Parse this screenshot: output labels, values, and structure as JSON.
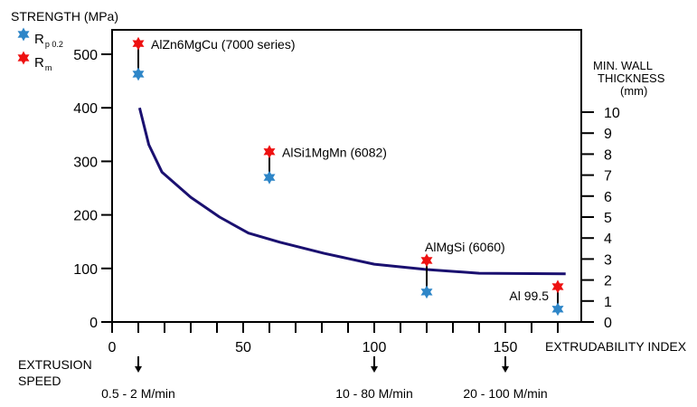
{
  "chart_data": {
    "type": "scatter",
    "title": "",
    "ylabel": "STRENGTH (MPa)",
    "y2label": [
      "MIN. WALL",
      "THICKNESS",
      "(mm)"
    ],
    "xlabel": "EXTRUDABILITY INDEX",
    "xlim": [
      0,
      179
    ],
    "ylim": [
      0,
      545
    ],
    "y2lim": [
      0,
      10
    ],
    "x_ticks": [
      0,
      50,
      100,
      150
    ],
    "y_ticks": [
      0,
      100,
      200,
      300,
      400,
      500
    ],
    "y2_ticks": [
      0,
      1,
      2,
      3,
      4,
      5,
      6,
      7,
      8,
      9,
      10
    ],
    "legend": [
      {
        "label": "R",
        "sub": "p 0.2",
        "color": "#2e86c8"
      },
      {
        "label": "R",
        "sub": "m",
        "color": "#ee1111"
      }
    ],
    "alloys": [
      {
        "name": "AlZn6MgCu (7000 series)",
        "x": 10,
        "rm": 520,
        "rp": 463
      },
      {
        "name": "AlSi1MgMn (6082)",
        "x": 60,
        "rm": 318,
        "rp": 270
      },
      {
        "name": "AlMgSi (6060)",
        "x": 120,
        "rm": 115,
        "rp": 56
      },
      {
        "name": "Al 99.5",
        "x": 170,
        "rm": 66,
        "rp": 24
      }
    ],
    "wall_thickness_curve": {
      "color": "#1a1070",
      "x": [
        10.5,
        14,
        19,
        30,
        41,
        52,
        64,
        81,
        100,
        120,
        140,
        173
      ],
      "y": [
        400,
        331,
        280,
        233,
        196,
        166,
        149,
        128,
        108,
        98,
        91,
        90
      ]
    },
    "speed_label": [
      "EXTRUSION",
      "SPEED"
    ],
    "speeds": [
      {
        "x": 10,
        "label": "0.5 - 2 M/min"
      },
      {
        "x": 100,
        "label": "10 - 80 M/min"
      },
      {
        "x": 150,
        "label": "20 - 100 M/min"
      }
    ]
  }
}
